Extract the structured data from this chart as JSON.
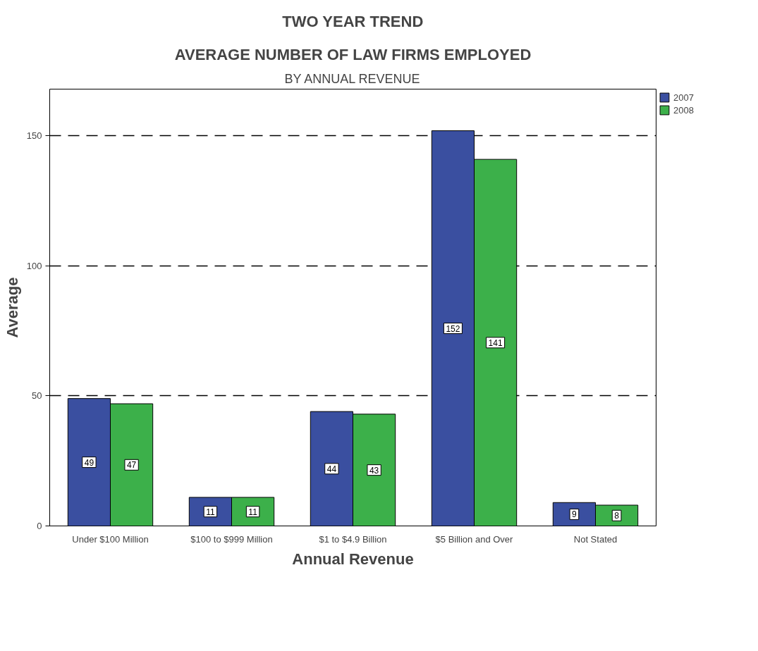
{
  "chart_data": {
    "type": "bar",
    "title": "TWO YEAR TREND",
    "subtitle": "AVERAGE NUMBER OF LAW FIRMS EMPLOYED",
    "annotations": [
      "BY ANNUAL REVENUE"
    ],
    "xlabel": "Annual Revenue",
    "ylabel": "Average",
    "categories": [
      "Under $100 Million",
      "$100 to $999 Million",
      "$1 to $4.9 Billion",
      "$5 Billion and Over",
      "Not Stated"
    ],
    "series": [
      {
        "name": "2007",
        "color": "#3a4fa0",
        "values": [
          49,
          11,
          44,
          152,
          9
        ]
      },
      {
        "name": "2008",
        "color": "#3cb04a",
        "values": [
          47,
          11,
          43,
          141,
          8
        ]
      }
    ],
    "ylim": [
      0,
      168
    ],
    "yticks": [
      0,
      50,
      100,
      150
    ],
    "grid": "y",
    "legend": "right",
    "data_labels": true
  }
}
